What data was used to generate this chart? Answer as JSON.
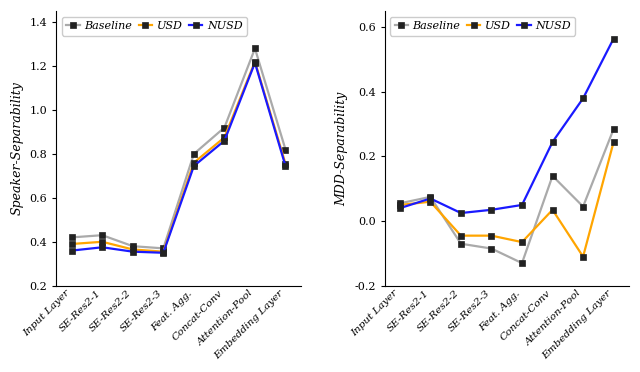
{
  "categories": [
    "Input Layer",
    "SE-Res2-1",
    "SE-Res2-2",
    "SE-Res2-3",
    "Feat. Agg.",
    "Concat-Conv",
    "Attention-Pool",
    "Embedding Layer"
  ],
  "speaker_baseline": [
    0.42,
    0.43,
    0.38,
    0.37,
    0.8,
    0.92,
    1.28,
    0.82
  ],
  "speaker_usd": [
    0.39,
    0.4,
    0.365,
    0.355,
    0.76,
    0.875,
    1.22,
    0.755
  ],
  "speaker_nusd": [
    0.36,
    0.375,
    0.355,
    0.35,
    0.745,
    0.86,
    1.215,
    0.745
  ],
  "mdd_baseline": [
    0.055,
    0.075,
    -0.07,
    -0.085,
    -0.13,
    0.14,
    0.045,
    0.285
  ],
  "mdd_usd": [
    0.05,
    0.06,
    -0.045,
    -0.045,
    -0.065,
    0.035,
    -0.11,
    0.245
  ],
  "mdd_nusd": [
    0.04,
    0.07,
    0.025,
    0.035,
    0.05,
    0.245,
    0.38,
    0.565
  ],
  "speaker_ylim": [
    0.2,
    1.45
  ],
  "speaker_yticks": [
    0.2,
    0.4,
    0.6,
    0.8,
    1.0,
    1.2,
    1.4
  ],
  "mdd_ylim": [
    -0.2,
    0.65
  ],
  "mdd_yticks": [
    -0.2,
    0.0,
    0.2,
    0.4,
    0.6
  ],
  "color_baseline": "#aaaaaa",
  "color_usd": "#FFA500",
  "color_nusd": "#1a1aff",
  "speaker_ylabel": "Speaker-Separability",
  "mdd_ylabel": "MDD-Separability",
  "legend_labels": [
    "Baseline",
    "USD",
    "NUSD"
  ],
  "markersize": 4,
  "linewidth": 1.6,
  "fig_width": 6.4,
  "fig_height": 3.72,
  "dpi": 100
}
